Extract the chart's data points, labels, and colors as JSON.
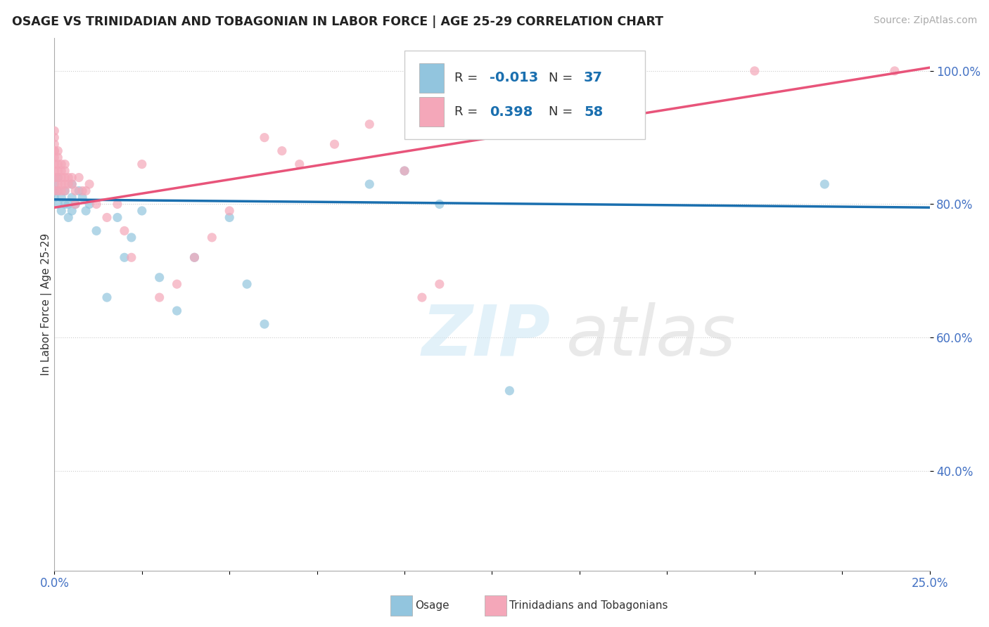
{
  "title": "OSAGE VS TRINIDADIAN AND TOBAGONIAN IN LABOR FORCE | AGE 25-29 CORRELATION CHART",
  "source": "Source: ZipAtlas.com",
  "ylabel": "In Labor Force | Age 25-29",
  "xlim": [
    0.0,
    0.25
  ],
  "ylim": [
    0.25,
    1.05
  ],
  "xticks": [
    0.0,
    0.025,
    0.05,
    0.075,
    0.1,
    0.125,
    0.15,
    0.175,
    0.2,
    0.225,
    0.25
  ],
  "ytick_positions": [
    0.4,
    0.6,
    0.8,
    1.0
  ],
  "ytick_labels": [
    "40.0%",
    "60.0%",
    "80.0%",
    "100.0%"
  ],
  "osage_color": "#92c5de",
  "trini_color": "#f4a7b9",
  "osage_line_color": "#1a6faf",
  "trini_line_color": "#e8547a",
  "legend_R_osage": "-0.013",
  "legend_N_osage": "37",
  "legend_R_trini": "0.398",
  "legend_N_trini": "58",
  "background_color": "#ffffff",
  "osage_x": [
    0.0,
    0.0,
    0.0,
    0.001,
    0.001,
    0.001,
    0.002,
    0.002,
    0.003,
    0.003,
    0.004,
    0.004,
    0.005,
    0.005,
    0.005,
    0.006,
    0.007,
    0.008,
    0.009,
    0.01,
    0.012,
    0.015,
    0.018,
    0.02,
    0.022,
    0.025,
    0.03,
    0.035,
    0.04,
    0.05,
    0.055,
    0.06,
    0.09,
    0.1,
    0.11,
    0.13,
    0.22
  ],
  "osage_y": [
    0.81,
    0.82,
    0.83,
    0.8,
    0.82,
    0.84,
    0.79,
    0.81,
    0.8,
    0.82,
    0.78,
    0.8,
    0.79,
    0.81,
    0.83,
    0.8,
    0.82,
    0.81,
    0.79,
    0.8,
    0.76,
    0.66,
    0.78,
    0.72,
    0.75,
    0.79,
    0.69,
    0.64,
    0.72,
    0.78,
    0.68,
    0.62,
    0.83,
    0.85,
    0.8,
    0.52,
    0.83
  ],
  "trini_x": [
    0.0,
    0.0,
    0.0,
    0.0,
    0.0,
    0.0,
    0.0,
    0.0,
    0.0,
    0.0,
    0.001,
    0.001,
    0.001,
    0.001,
    0.001,
    0.001,
    0.001,
    0.002,
    0.002,
    0.002,
    0.002,
    0.002,
    0.003,
    0.003,
    0.003,
    0.003,
    0.003,
    0.004,
    0.004,
    0.005,
    0.005,
    0.006,
    0.006,
    0.007,
    0.008,
    0.009,
    0.01,
    0.012,
    0.015,
    0.018,
    0.02,
    0.022,
    0.025,
    0.03,
    0.035,
    0.04,
    0.045,
    0.05,
    0.06,
    0.065,
    0.07,
    0.08,
    0.09,
    0.1,
    0.105,
    0.11,
    0.2,
    0.24
  ],
  "trini_y": [
    0.82,
    0.84,
    0.85,
    0.86,
    0.87,
    0.88,
    0.88,
    0.89,
    0.9,
    0.91,
    0.82,
    0.83,
    0.84,
    0.85,
    0.86,
    0.87,
    0.88,
    0.82,
    0.83,
    0.84,
    0.85,
    0.86,
    0.82,
    0.83,
    0.84,
    0.85,
    0.86,
    0.83,
    0.84,
    0.83,
    0.84,
    0.8,
    0.82,
    0.84,
    0.82,
    0.82,
    0.83,
    0.8,
    0.78,
    0.8,
    0.76,
    0.72,
    0.86,
    0.66,
    0.68,
    0.72,
    0.75,
    0.79,
    0.9,
    0.88,
    0.86,
    0.89,
    0.92,
    0.85,
    0.66,
    0.68,
    1.0,
    1.0
  ]
}
